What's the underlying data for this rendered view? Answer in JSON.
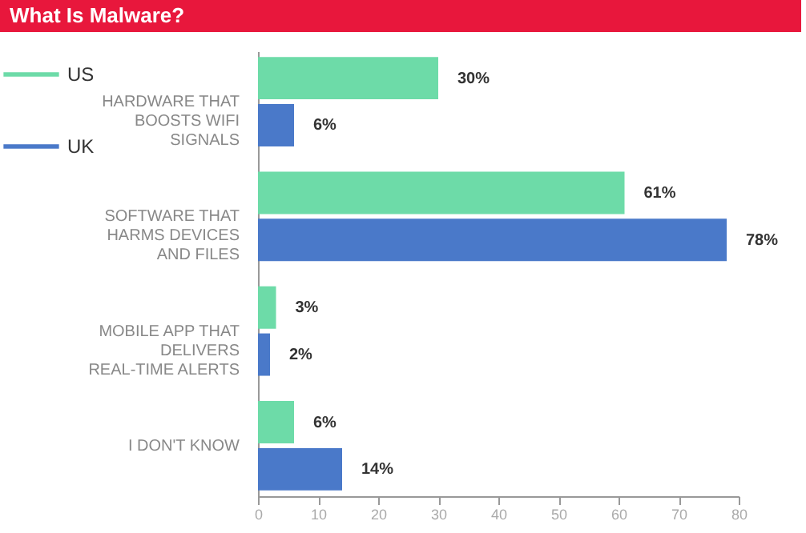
{
  "chart_data": {
    "type": "bar",
    "orientation": "horizontal",
    "title": "What Is Malware?",
    "categories": [
      "HARDWARE THAT BOOSTS WIFI SIGNALS",
      "SOFTWARE THAT HARMS DEVICES AND FILES",
      "MOBILE APP THAT DELIVERS REAL-TIME ALERTS",
      "I DON'T KNOW"
    ],
    "series": [
      {
        "name": "US",
        "color": "#6ddba8",
        "values": [
          30,
          61,
          3,
          6
        ],
        "value_labels": [
          "30%",
          "61%",
          "3%",
          "6%"
        ]
      },
      {
        "name": "UK",
        "color": "#4a79c9",
        "values": [
          6,
          78,
          2,
          14
        ],
        "value_labels": [
          "6%",
          "78%",
          "2%",
          "14%"
        ]
      }
    ],
    "xlim": [
      0,
      80
    ],
    "xticks": [
      0,
      10,
      20,
      30,
      40,
      50,
      60,
      70,
      80
    ],
    "grid": false,
    "legend": "top left"
  }
}
